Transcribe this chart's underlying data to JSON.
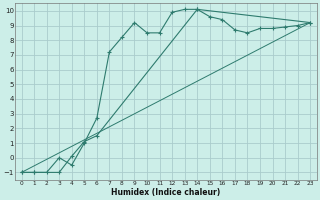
{
  "xlabel": "Humidex (Indice chaleur)",
  "bg_color": "#cceee8",
  "grid_color": "#aacccc",
  "line_color": "#2e7b6e",
  "xlim": [
    -0.5,
    23.5
  ],
  "ylim": [
    -1.5,
    10.5
  ],
  "xticks": [
    0,
    1,
    2,
    3,
    4,
    5,
    6,
    7,
    8,
    9,
    10,
    11,
    12,
    13,
    14,
    15,
    16,
    17,
    18,
    19,
    20,
    21,
    22,
    23
  ],
  "yticks": [
    -1,
    0,
    1,
    2,
    3,
    4,
    5,
    6,
    7,
    8,
    9,
    10
  ],
  "curve_main_x": [
    0,
    1,
    2,
    3,
    4,
    5,
    6,
    7,
    8,
    9,
    10,
    11,
    12,
    13,
    14,
    15,
    16,
    17,
    18,
    19,
    20,
    21,
    22,
    23
  ],
  "curve_main_y": [
    -1,
    -1,
    -1,
    0,
    -0.5,
    1,
    2.7,
    7.2,
    8.2,
    9.2,
    8.5,
    8.5,
    9.9,
    10.1,
    10.1,
    9.6,
    9.4,
    8.7,
    8.5,
    8.8,
    8.8,
    8.9,
    9.0,
    9.2
  ],
  "curve2_x": [
    0,
    1,
    3,
    4,
    5,
    6,
    14,
    23
  ],
  "curve2_y": [
    -1,
    -1,
    -1,
    0.1,
    1.1,
    1.5,
    10.1,
    9.2
  ],
  "line_x": [
    0,
    23
  ],
  "line_y": [
    -1,
    9.2
  ]
}
